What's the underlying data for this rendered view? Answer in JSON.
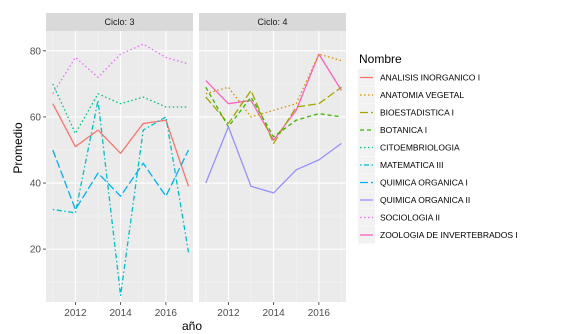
{
  "chart_data": {
    "type": "line",
    "xlabel": "año",
    "ylabel": "Promedio",
    "xlim": [
      2010.7,
      2017.2
    ],
    "ylim": [
      4,
      86
    ],
    "x_ticks": [
      2012,
      2014,
      2016
    ],
    "y_ticks": [
      20,
      40,
      60,
      80
    ],
    "grid": true,
    "legend_title": "Nombre",
    "legend_position": "right",
    "series_styles": [
      {
        "name": "ANALISIS INORGANICO I",
        "color": "#F8766D",
        "dash": "solid"
      },
      {
        "name": "ANATOMIA VEGETAL",
        "color": "#D89000",
        "dash": "dotted"
      },
      {
        "name": "BIOESTADISTICA I",
        "color": "#A3A500",
        "dash": "longdash"
      },
      {
        "name": "BOTANICA I",
        "color": "#39B600",
        "dash": "dashed"
      },
      {
        "name": "CITOEMBRIOLOGIA",
        "color": "#00BF7D",
        "dash": "dotted"
      },
      {
        "name": "MATEMATICA III",
        "color": "#00BFC4",
        "dash": "dotdash"
      },
      {
        "name": "QUIMICA ORGANICA I",
        "color": "#00B0F6",
        "dash": "longdash"
      },
      {
        "name": "QUIMICA ORGANICA II",
        "color": "#9590FF",
        "dash": "solid"
      },
      {
        "name": "SOCIOLOGIA II",
        "color": "#E76BF3",
        "dash": "dotted"
      },
      {
        "name": "ZOOLOGIA DE INVERTEBRADOS I",
        "color": "#FF62BC",
        "dash": "solid"
      }
    ],
    "panels": [
      {
        "label": "Ciclo: 3",
        "series": [
          {
            "name": "SOCIOLOGIA II",
            "x": [
              2011,
              2012,
              2013,
              2014,
              2015,
              2016,
              2017
            ],
            "y": [
              67,
              78,
              72,
              79,
              82,
              78,
              76
            ]
          },
          {
            "name": "CITOEMBRIOLOGIA",
            "x": [
              2011,
              2012,
              2013,
              2014,
              2015,
              2016,
              2017
            ],
            "y": [
              70,
              55,
              67,
              64,
              66,
              63,
              63
            ]
          },
          {
            "name": "ANALISIS INORGANICO I",
            "x": [
              2011,
              2012,
              2013,
              2014,
              2015,
              2016,
              2017
            ],
            "y": [
              64,
              51,
              56,
              49,
              58,
              59,
              39
            ]
          },
          {
            "name": "QUIMICA ORGANICA I",
            "x": [
              2011,
              2012,
              2013,
              2014,
              2015,
              2016,
              2017
            ],
            "y": [
              50,
              32,
              43,
              36,
              46,
              36,
              50
            ]
          },
          {
            "name": "MATEMATICA III",
            "x": [
              2011,
              2012,
              2013,
              2014,
              2015,
              2016,
              2017
            ],
            "y": [
              32,
              31,
              65,
              6,
              56,
              60,
              19
            ]
          }
        ]
      },
      {
        "label": "Ciclo: 4",
        "series": [
          {
            "name": "ZOOLOGIA DE INVERTEBRADOS I",
            "x": [
              2011,
              2012,
              2013,
              2014,
              2015,
              2016,
              2017
            ],
            "y": [
              71,
              64,
              65,
              53,
              62,
              79,
              68
            ]
          },
          {
            "name": "ANATOMIA VEGETAL",
            "x": [
              2011,
              2012,
              2013,
              2014,
              2015,
              2016,
              2017
            ],
            "y": [
              67,
              69,
              60,
              62,
              64,
              79,
              77
            ]
          },
          {
            "name": "BIOESTADISTICA I",
            "x": [
              2011,
              2012,
              2013,
              2014,
              2015,
              2016,
              2017
            ],
            "y": [
              66,
              58,
              68,
              52,
              63,
              64,
              69
            ]
          },
          {
            "name": "BOTANICA I",
            "x": [
              2011,
              2012,
              2013,
              2014,
              2015,
              2016,
              2017
            ],
            "y": [
              69,
              57,
              66,
              54,
              59,
              61,
              60
            ]
          },
          {
            "name": "QUIMICA ORGANICA II",
            "x": [
              2011,
              2012,
              2013,
              2014,
              2015,
              2016,
              2017
            ],
            "y": [
              40,
              57,
              39,
              37,
              44,
              47,
              52
            ]
          }
        ]
      }
    ]
  }
}
